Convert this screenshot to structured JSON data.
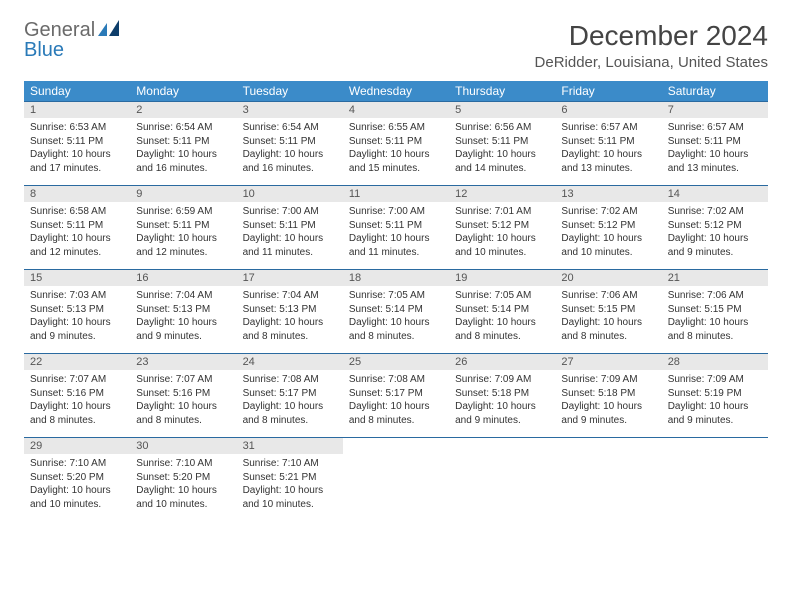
{
  "logo": {
    "general": "General",
    "blue": "Blue"
  },
  "title": "December 2024",
  "subtitle": "DeRidder, Louisiana, United States",
  "colors": {
    "header_bg": "#3b8bc9",
    "header_text": "#ffffff",
    "daynum_bg": "#e8e8e8",
    "rule": "#2a6aa0",
    "body_text": "#333333",
    "logo_gray": "#6a6a6a",
    "logo_blue": "#2a7ab8"
  },
  "weekdays": [
    "Sunday",
    "Monday",
    "Tuesday",
    "Wednesday",
    "Thursday",
    "Friday",
    "Saturday"
  ],
  "weeks": [
    [
      {
        "n": "1",
        "sr": "Sunrise: 6:53 AM",
        "ss": "Sunset: 5:11 PM",
        "dl1": "Daylight: 10 hours",
        "dl2": "and 17 minutes."
      },
      {
        "n": "2",
        "sr": "Sunrise: 6:54 AM",
        "ss": "Sunset: 5:11 PM",
        "dl1": "Daylight: 10 hours",
        "dl2": "and 16 minutes."
      },
      {
        "n": "3",
        "sr": "Sunrise: 6:54 AM",
        "ss": "Sunset: 5:11 PM",
        "dl1": "Daylight: 10 hours",
        "dl2": "and 16 minutes."
      },
      {
        "n": "4",
        "sr": "Sunrise: 6:55 AM",
        "ss": "Sunset: 5:11 PM",
        "dl1": "Daylight: 10 hours",
        "dl2": "and 15 minutes."
      },
      {
        "n": "5",
        "sr": "Sunrise: 6:56 AM",
        "ss": "Sunset: 5:11 PM",
        "dl1": "Daylight: 10 hours",
        "dl2": "and 14 minutes."
      },
      {
        "n": "6",
        "sr": "Sunrise: 6:57 AM",
        "ss": "Sunset: 5:11 PM",
        "dl1": "Daylight: 10 hours",
        "dl2": "and 13 minutes."
      },
      {
        "n": "7",
        "sr": "Sunrise: 6:57 AM",
        "ss": "Sunset: 5:11 PM",
        "dl1": "Daylight: 10 hours",
        "dl2": "and 13 minutes."
      }
    ],
    [
      {
        "n": "8",
        "sr": "Sunrise: 6:58 AM",
        "ss": "Sunset: 5:11 PM",
        "dl1": "Daylight: 10 hours",
        "dl2": "and 12 minutes."
      },
      {
        "n": "9",
        "sr": "Sunrise: 6:59 AM",
        "ss": "Sunset: 5:11 PM",
        "dl1": "Daylight: 10 hours",
        "dl2": "and 12 minutes."
      },
      {
        "n": "10",
        "sr": "Sunrise: 7:00 AM",
        "ss": "Sunset: 5:11 PM",
        "dl1": "Daylight: 10 hours",
        "dl2": "and 11 minutes."
      },
      {
        "n": "11",
        "sr": "Sunrise: 7:00 AM",
        "ss": "Sunset: 5:11 PM",
        "dl1": "Daylight: 10 hours",
        "dl2": "and 11 minutes."
      },
      {
        "n": "12",
        "sr": "Sunrise: 7:01 AM",
        "ss": "Sunset: 5:12 PM",
        "dl1": "Daylight: 10 hours",
        "dl2": "and 10 minutes."
      },
      {
        "n": "13",
        "sr": "Sunrise: 7:02 AM",
        "ss": "Sunset: 5:12 PM",
        "dl1": "Daylight: 10 hours",
        "dl2": "and 10 minutes."
      },
      {
        "n": "14",
        "sr": "Sunrise: 7:02 AM",
        "ss": "Sunset: 5:12 PM",
        "dl1": "Daylight: 10 hours",
        "dl2": "and 9 minutes."
      }
    ],
    [
      {
        "n": "15",
        "sr": "Sunrise: 7:03 AM",
        "ss": "Sunset: 5:13 PM",
        "dl1": "Daylight: 10 hours",
        "dl2": "and 9 minutes."
      },
      {
        "n": "16",
        "sr": "Sunrise: 7:04 AM",
        "ss": "Sunset: 5:13 PM",
        "dl1": "Daylight: 10 hours",
        "dl2": "and 9 minutes."
      },
      {
        "n": "17",
        "sr": "Sunrise: 7:04 AM",
        "ss": "Sunset: 5:13 PM",
        "dl1": "Daylight: 10 hours",
        "dl2": "and 8 minutes."
      },
      {
        "n": "18",
        "sr": "Sunrise: 7:05 AM",
        "ss": "Sunset: 5:14 PM",
        "dl1": "Daylight: 10 hours",
        "dl2": "and 8 minutes."
      },
      {
        "n": "19",
        "sr": "Sunrise: 7:05 AM",
        "ss": "Sunset: 5:14 PM",
        "dl1": "Daylight: 10 hours",
        "dl2": "and 8 minutes."
      },
      {
        "n": "20",
        "sr": "Sunrise: 7:06 AM",
        "ss": "Sunset: 5:15 PM",
        "dl1": "Daylight: 10 hours",
        "dl2": "and 8 minutes."
      },
      {
        "n": "21",
        "sr": "Sunrise: 7:06 AM",
        "ss": "Sunset: 5:15 PM",
        "dl1": "Daylight: 10 hours",
        "dl2": "and 8 minutes."
      }
    ],
    [
      {
        "n": "22",
        "sr": "Sunrise: 7:07 AM",
        "ss": "Sunset: 5:16 PM",
        "dl1": "Daylight: 10 hours",
        "dl2": "and 8 minutes."
      },
      {
        "n": "23",
        "sr": "Sunrise: 7:07 AM",
        "ss": "Sunset: 5:16 PM",
        "dl1": "Daylight: 10 hours",
        "dl2": "and 8 minutes."
      },
      {
        "n": "24",
        "sr": "Sunrise: 7:08 AM",
        "ss": "Sunset: 5:17 PM",
        "dl1": "Daylight: 10 hours",
        "dl2": "and 8 minutes."
      },
      {
        "n": "25",
        "sr": "Sunrise: 7:08 AM",
        "ss": "Sunset: 5:17 PM",
        "dl1": "Daylight: 10 hours",
        "dl2": "and 8 minutes."
      },
      {
        "n": "26",
        "sr": "Sunrise: 7:09 AM",
        "ss": "Sunset: 5:18 PM",
        "dl1": "Daylight: 10 hours",
        "dl2": "and 9 minutes."
      },
      {
        "n": "27",
        "sr": "Sunrise: 7:09 AM",
        "ss": "Sunset: 5:18 PM",
        "dl1": "Daylight: 10 hours",
        "dl2": "and 9 minutes."
      },
      {
        "n": "28",
        "sr": "Sunrise: 7:09 AM",
        "ss": "Sunset: 5:19 PM",
        "dl1": "Daylight: 10 hours",
        "dl2": "and 9 minutes."
      }
    ],
    [
      {
        "n": "29",
        "sr": "Sunrise: 7:10 AM",
        "ss": "Sunset: 5:20 PM",
        "dl1": "Daylight: 10 hours",
        "dl2": "and 10 minutes."
      },
      {
        "n": "30",
        "sr": "Sunrise: 7:10 AM",
        "ss": "Sunset: 5:20 PM",
        "dl1": "Daylight: 10 hours",
        "dl2": "and 10 minutes."
      },
      {
        "n": "31",
        "sr": "Sunrise: 7:10 AM",
        "ss": "Sunset: 5:21 PM",
        "dl1": "Daylight: 10 hours",
        "dl2": "and 10 minutes."
      },
      {
        "n": "",
        "sr": "",
        "ss": "",
        "dl1": "",
        "dl2": ""
      },
      {
        "n": "",
        "sr": "",
        "ss": "",
        "dl1": "",
        "dl2": ""
      },
      {
        "n": "",
        "sr": "",
        "ss": "",
        "dl1": "",
        "dl2": ""
      },
      {
        "n": "",
        "sr": "",
        "ss": "",
        "dl1": "",
        "dl2": ""
      }
    ]
  ]
}
